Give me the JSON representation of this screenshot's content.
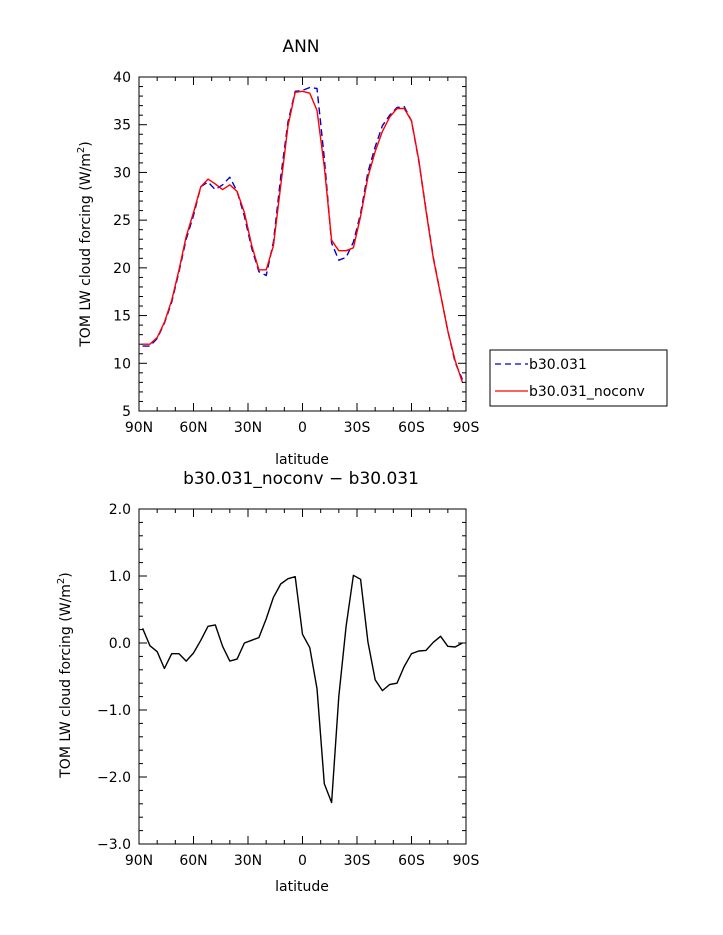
{
  "chart_data": [
    {
      "type": "line",
      "title": "ANN",
      "xlabel": "latitude",
      "ylabel_main": "TOM LW cloud forcing (W/m",
      "ylabel_sup": "2",
      "ylabel_end": ")",
      "xlim": [
        -90,
        90
      ],
      "ylim": [
        5,
        40
      ],
      "x_ticks": [
        -90,
        -60,
        -30,
        0,
        30,
        60,
        90
      ],
      "x_tick_labels": [
        "90N",
        "60N",
        "30N",
        "0",
        "30S",
        "60S",
        "90S"
      ],
      "y_ticks": [
        5,
        10,
        15,
        20,
        25,
        30,
        35,
        40
      ],
      "y_tick_labels": [
        "5",
        "10",
        "15",
        "20",
        "25",
        "30",
        "35",
        "40"
      ],
      "grid": false,
      "legend_position": "right",
      "series": [
        {
          "name": "b30.031",
          "color": "#0000cc",
          "dash": "dashed",
          "x": [
            -88,
            -84,
            -80,
            -76,
            -72,
            -68,
            -64,
            -60,
            -56,
            -52,
            -48,
            -44,
            -40,
            -36,
            -32,
            -28,
            -24,
            -20,
            -16,
            -12,
            -8,
            -4,
            0,
            4,
            8,
            12,
            16,
            20,
            24,
            28,
            32,
            36,
            40,
            44,
            48,
            52,
            56,
            60,
            64,
            68,
            72,
            76,
            80,
            84,
            88
          ],
          "y": [
            11.8,
            11.8,
            12.6,
            14.2,
            16.4,
            19.6,
            23.0,
            25.5,
            28.5,
            29.0,
            28.2,
            28.7,
            29.5,
            28.0,
            25.4,
            22.1,
            19.6,
            19.2,
            22.7,
            29.5,
            35.3,
            38.5,
            38.6,
            38.9,
            38.8,
            31.5,
            22.6,
            20.8,
            21.1,
            22.7,
            25.7,
            30.0,
            32.7,
            34.9,
            36.0,
            36.8,
            36.9,
            35.4,
            31.2,
            26.1,
            21.1,
            17.2,
            13.4,
            10.1,
            8.3
          ]
        },
        {
          "name": "b30.031_noconv",
          "color": "#ff0000",
          "dash": "solid",
          "x": [
            -88,
            -84,
            -80,
            -76,
            -72,
            -68,
            -64,
            -60,
            -56,
            -52,
            -48,
            -44,
            -40,
            -36,
            -32,
            -28,
            -24,
            -20,
            -16,
            -12,
            -8,
            -4,
            0,
            4,
            8,
            12,
            16,
            20,
            24,
            28,
            32,
            36,
            40,
            44,
            48,
            52,
            56,
            60,
            64,
            68,
            72,
            76,
            80,
            84,
            88
          ],
          "y": [
            12.0,
            12.0,
            12.7,
            14.3,
            16.6,
            19.8,
            23.3,
            25.8,
            28.5,
            29.3,
            28.8,
            28.2,
            28.7,
            28.0,
            25.8,
            22.4,
            19.8,
            19.8,
            22.3,
            28.6,
            34.9,
            38.4,
            38.5,
            38.3,
            36.5,
            30.6,
            22.9,
            21.8,
            21.8,
            22.1,
            25.4,
            29.5,
            32.2,
            34.3,
            35.8,
            36.7,
            36.7,
            35.4,
            31.3,
            26.0,
            21.0,
            17.2,
            13.4,
            10.3,
            8.0
          ]
        }
      ]
    },
    {
      "type": "line",
      "title": "b30.031_noconv − b30.031",
      "xlabel": "latitude",
      "ylabel_main": "TOM LW cloud forcing (W/m",
      "ylabel_sup": "2",
      "ylabel_end": ")",
      "xlim": [
        -90,
        90
      ],
      "ylim": [
        -3.0,
        2.0
      ],
      "x_ticks": [
        -90,
        -60,
        -30,
        0,
        30,
        60,
        90
      ],
      "x_tick_labels": [
        "90N",
        "60N",
        "30N",
        "0",
        "30S",
        "60S",
        "90S"
      ],
      "y_ticks": [
        -3.0,
        -2.0,
        -1.0,
        0.0,
        1.0,
        2.0
      ],
      "y_tick_labels": [
        "−3.0",
        "−2.0",
        "−1.0",
        "0.0",
        "1.0",
        "2.0"
      ],
      "grid": false,
      "series": [
        {
          "name": "",
          "color": "#000000",
          "dash": "solid",
          "x": [
            -88,
            -84,
            -80,
            -76,
            -72,
            -68,
            -64,
            -60,
            -56,
            -52,
            -48,
            -44,
            -40,
            -36,
            -32,
            -28,
            -24,
            -20,
            -16,
            -12,
            -8,
            -4,
            0,
            4,
            8,
            12,
            16,
            20,
            24,
            28,
            32,
            36,
            40,
            44,
            48,
            52,
            56,
            60,
            64,
            68,
            72,
            76,
            80,
            84,
            88
          ],
          "y": [
            0.22,
            -0.04,
            -0.13,
            -0.38,
            -0.16,
            -0.16,
            -0.27,
            -0.15,
            0.04,
            0.25,
            0.27,
            -0.05,
            -0.27,
            -0.24,
            0.0,
            0.04,
            0.08,
            0.36,
            0.68,
            0.88,
            0.96,
            0.99,
            0.13,
            -0.07,
            -0.68,
            -2.1,
            -2.38,
            -0.8,
            0.25,
            1.01,
            0.95,
            0.02,
            -0.55,
            -0.71,
            -0.62,
            -0.6,
            -0.35,
            -0.16,
            -0.12,
            -0.11,
            0.01,
            0.1,
            -0.05,
            -0.06,
            0.0
          ]
        }
      ]
    }
  ]
}
